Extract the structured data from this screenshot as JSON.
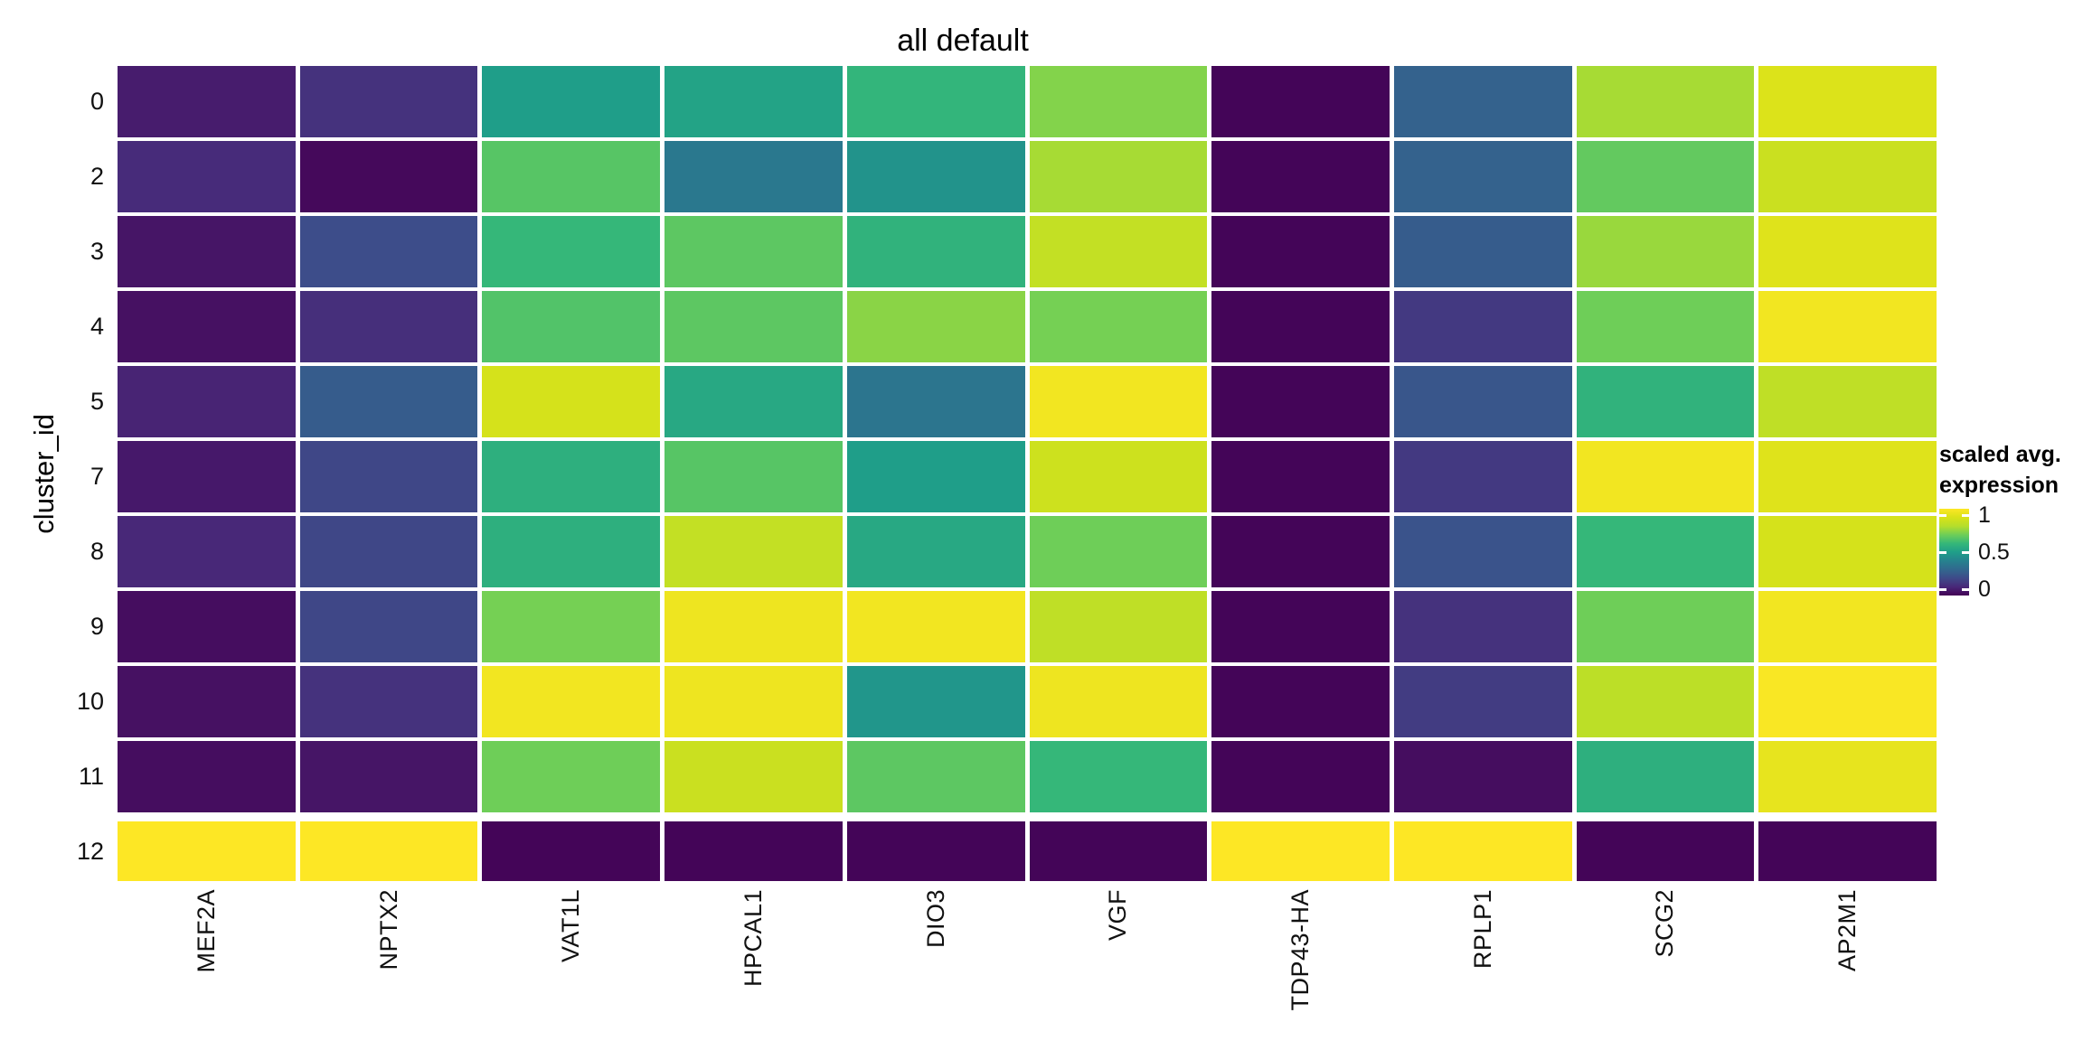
{
  "title": "all default",
  "y_axis": {
    "title": "cluster_id"
  },
  "legend": {
    "title_line1": "scaled avg.",
    "title_line2": "expression",
    "ticks": [
      {
        "label": "1",
        "value": 1.0
      },
      {
        "label": "0.5",
        "value": 0.5
      },
      {
        "label": "0",
        "value": 0.0
      }
    ]
  },
  "colors": {
    "background": "#ffffff",
    "text": "#000000",
    "tile_border": "#ffffff"
  },
  "chart_data": {
    "type": "heatmap",
    "title": "all default",
    "xlabel": "",
    "ylabel": "cluster_id",
    "value_label": "scaled avg. expression",
    "value_range": [
      0,
      1
    ],
    "legend_position": "right",
    "colormap": "viridis",
    "colormap_stops": [
      "#440154",
      "#482878",
      "#3e4a89",
      "#31688e",
      "#26828e",
      "#1f9e89",
      "#35b779",
      "#6ece58",
      "#b5de2b",
      "#d8e219",
      "#fde725"
    ],
    "x_categories": [
      "MEF2A",
      "NPTX2",
      "VAT1L",
      "HPCAL1",
      "DIO3",
      "VGF",
      "TDP43-HA",
      "RPLP1",
      "SCG2",
      "AP2M1"
    ],
    "y_categories": [
      "0",
      "2",
      "3",
      "4",
      "5",
      "7",
      "8",
      "9",
      "10",
      "11",
      "12"
    ],
    "values": [
      [
        0.07,
        0.13,
        0.5,
        0.52,
        0.59,
        0.73,
        0.01,
        0.28,
        0.78,
        0.91
      ],
      [
        0.11,
        0.02,
        0.66,
        0.36,
        0.46,
        0.78,
        0.01,
        0.28,
        0.68,
        0.86
      ],
      [
        0.05,
        0.21,
        0.6,
        0.67,
        0.58,
        0.84,
        0.01,
        0.26,
        0.76,
        0.92
      ],
      [
        0.04,
        0.12,
        0.65,
        0.67,
        0.74,
        0.71,
        0.01,
        0.15,
        0.7,
        0.97
      ],
      [
        0.09,
        0.26,
        0.89,
        0.54,
        0.35,
        0.97,
        0.01,
        0.24,
        0.58,
        0.83
      ],
      [
        0.06,
        0.19,
        0.57,
        0.66,
        0.5,
        0.87,
        0.01,
        0.15,
        0.97,
        0.92
      ],
      [
        0.1,
        0.19,
        0.57,
        0.84,
        0.54,
        0.7,
        0.01,
        0.23,
        0.6,
        0.89
      ],
      [
        0.03,
        0.19,
        0.71,
        0.96,
        0.97,
        0.83,
        0.01,
        0.13,
        0.7,
        0.97
      ],
      [
        0.04,
        0.13,
        0.97,
        0.96,
        0.47,
        0.96,
        0.01,
        0.16,
        0.82,
        0.99
      ],
      [
        0.03,
        0.05,
        0.7,
        0.86,
        0.67,
        0.6,
        0.01,
        0.03,
        0.57,
        0.94
      ],
      [
        1.0,
        1.0,
        0.01,
        0.01,
        0.01,
        0.01,
        1.0,
        1.0,
        0.01,
        0.01
      ]
    ]
  }
}
